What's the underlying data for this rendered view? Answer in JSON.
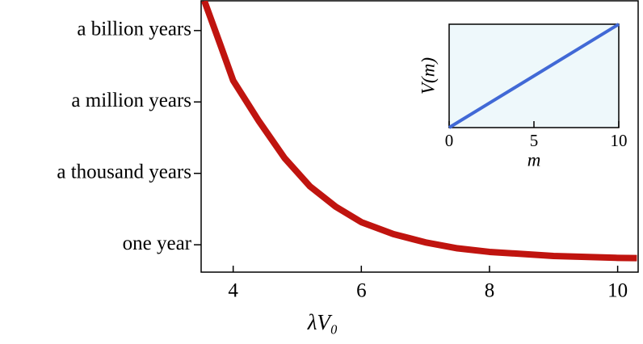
{
  "chart_data": [
    {
      "type": "line",
      "x_label": "λV₀",
      "x": [
        3.55,
        3.8,
        4.0,
        4.4,
        4.8,
        5.2,
        5.6,
        6.0,
        6.5,
        7.0,
        7.5,
        8.0,
        9.0,
        10.0,
        10.3
      ],
      "series": [
        {
          "color": "#c0140f",
          "values": [
            10.25,
            8.4,
            6.9,
            5.2,
            3.65,
            2.45,
            1.6,
            0.95,
            0.45,
            0.1,
            -0.15,
            -0.3,
            -0.47,
            -0.55,
            -0.56
          ]
        }
      ],
      "xlim": [
        3.5,
        10.32
      ],
      "xticks": [
        4,
        6,
        8,
        10
      ],
      "ylim": [
        -1.15,
        10.25
      ],
      "yticks": [
        {
          "value": 0,
          "label": "one year"
        },
        {
          "value": 3,
          "label": "a thousand years"
        },
        {
          "value": 6,
          "label": "a million years"
        },
        {
          "value": 9,
          "label": "a billion years"
        }
      ]
    },
    {
      "type": "line",
      "x_label": "m",
      "y_label": "V(m)",
      "background": "#eef8fb",
      "x": [
        0,
        10
      ],
      "series": [
        {
          "color": "#4169d6",
          "values": [
            0,
            10
          ]
        }
      ],
      "xlim": [
        0,
        10
      ],
      "xticks": [
        0,
        5,
        10
      ],
      "ylim": [
        0,
        10
      ]
    }
  ]
}
